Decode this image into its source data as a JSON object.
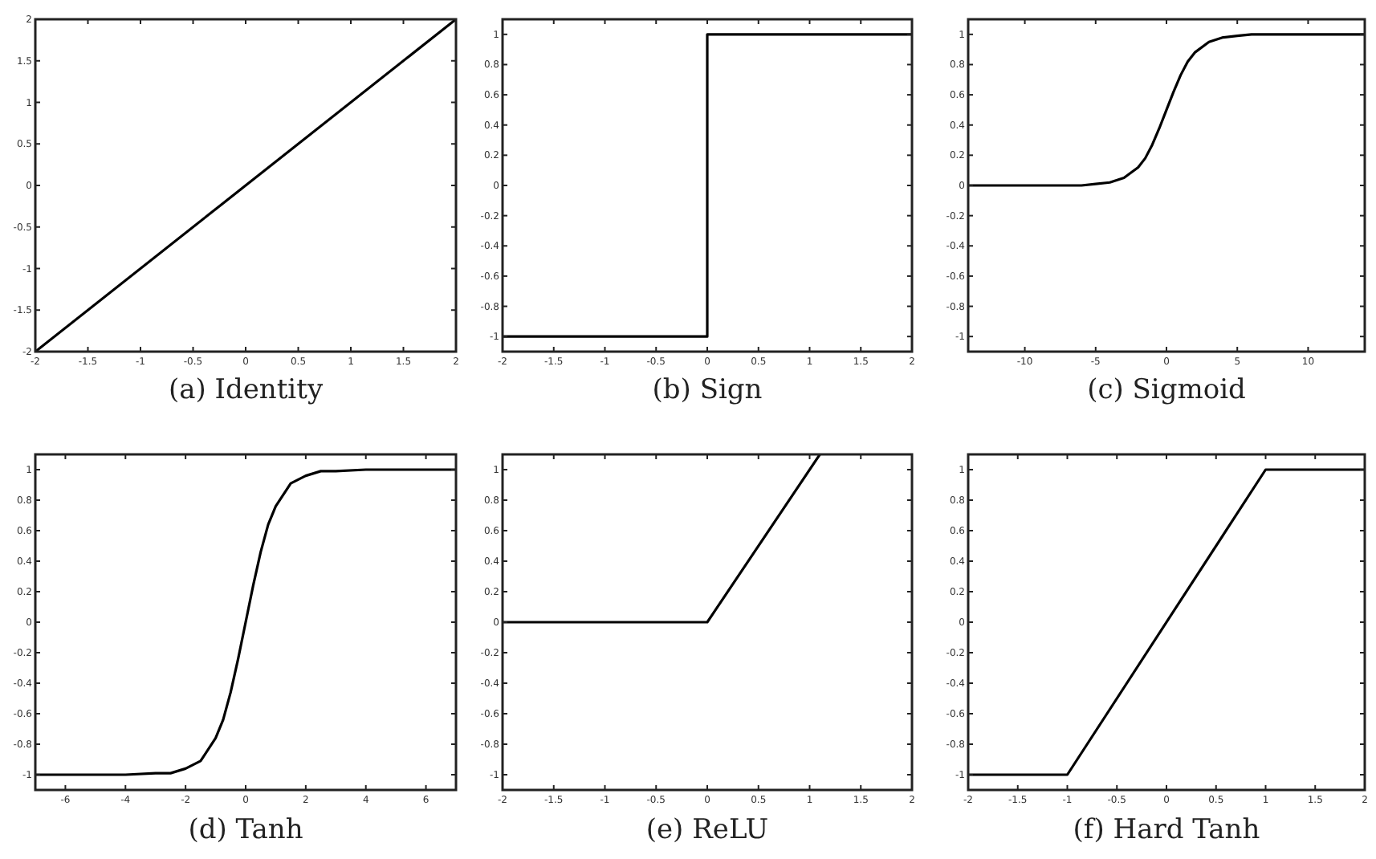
{
  "chart_data": [
    {
      "type": "line",
      "title": "(a) Identity",
      "xlim": [
        -2,
        2
      ],
      "ylim": [
        -2,
        2
      ],
      "xticks": [
        -2,
        -1.5,
        -1,
        -0.5,
        0,
        0.5,
        1,
        1.5,
        2
      ],
      "yticks": [
        -2,
        -1.5,
        -1,
        -0.5,
        0,
        0.5,
        1,
        1.5,
        2
      ],
      "series": [
        {
          "color": "#000000",
          "x": [
            -2,
            2
          ],
          "values": [
            -2,
            2
          ]
        }
      ]
    },
    {
      "type": "line",
      "title": "(b) Sign",
      "xlim": [
        -2,
        2
      ],
      "ylim": [
        -1.1,
        1.1
      ],
      "xticks": [
        -2,
        -1.5,
        -1,
        -0.5,
        0,
        0.5,
        1,
        1.5,
        2
      ],
      "yticks": [
        -1,
        -0.8,
        -0.6,
        -0.4,
        -0.2,
        0,
        0.2,
        0.4,
        0.6,
        0.8,
        1
      ],
      "series": [
        {
          "color": "#000000",
          "x": [
            -2,
            0,
            0,
            2
          ],
          "values": [
            -1,
            -1,
            1,
            1
          ]
        }
      ]
    },
    {
      "type": "line",
      "title": "(c) Sigmoid",
      "xlim": [
        -14,
        14
      ],
      "ylim": [
        -1.1,
        1.1
      ],
      "xticks": [
        -10,
        -5,
        0,
        5,
        10
      ],
      "yticks": [
        -1,
        -0.8,
        -0.6,
        -0.4,
        -0.2,
        0,
        0.2,
        0.4,
        0.6,
        0.8,
        1
      ],
      "series": [
        {
          "color": "#000000",
          "x": [
            -14,
            -10,
            -8,
            -6,
            -5,
            -4,
            -3,
            -2,
            -1.5,
            -1,
            -0.5,
            0,
            0.5,
            1,
            1.5,
            2,
            3,
            4,
            5,
            6,
            8,
            10,
            14
          ],
          "values": [
            0,
            0,
            0,
            0,
            0.01,
            0.02,
            0.05,
            0.12,
            0.18,
            0.27,
            0.38,
            0.5,
            0.62,
            0.73,
            0.82,
            0.88,
            0.95,
            0.98,
            0.99,
            1,
            1,
            1,
            1
          ]
        }
      ]
    },
    {
      "type": "line",
      "title": "(d) Tanh",
      "xlim": [
        -7,
        7
      ],
      "ylim": [
        -1.1,
        1.1
      ],
      "xticks": [
        -6,
        -4,
        -2,
        0,
        2,
        4,
        6
      ],
      "yticks": [
        -1,
        -0.8,
        -0.6,
        -0.4,
        -0.2,
        0,
        0.2,
        0.4,
        0.6,
        0.8,
        1
      ],
      "series": [
        {
          "color": "#000000",
          "x": [
            -7,
            -5,
            -4,
            -3,
            -2.5,
            -2,
            -1.5,
            -1,
            -0.75,
            -0.5,
            -0.25,
            0,
            0.25,
            0.5,
            0.75,
            1,
            1.5,
            2,
            2.5,
            3,
            4,
            5,
            7
          ],
          "values": [
            -1,
            -1,
            -1,
            -0.99,
            -0.99,
            -0.96,
            -0.91,
            -0.76,
            -0.64,
            -0.46,
            -0.24,
            0,
            0.24,
            0.46,
            0.64,
            0.76,
            0.91,
            0.96,
            0.99,
            0.99,
            1,
            1,
            1
          ]
        }
      ]
    },
    {
      "type": "line",
      "title": "(e) ReLU",
      "xlim": [
        -2,
        2
      ],
      "ylim": [
        -1.1,
        1.1
      ],
      "xticks": [
        -2,
        -1.5,
        -1,
        -0.5,
        0,
        0.5,
        1,
        1.5,
        2
      ],
      "yticks": [
        -1,
        -0.8,
        -0.6,
        -0.4,
        -0.2,
        0,
        0.2,
        0.4,
        0.6,
        0.8,
        1
      ],
      "series": [
        {
          "color": "#000000",
          "x": [
            -2,
            0,
            1.1
          ],
          "values": [
            0,
            0,
            1.1
          ]
        }
      ]
    },
    {
      "type": "line",
      "title": "(f) Hard Tanh",
      "xlim": [
        -2,
        2
      ],
      "ylim": [
        -1.1,
        1.1
      ],
      "xticks": [
        -2,
        -1.5,
        -1,
        -0.5,
        0,
        0.5,
        1,
        1.5,
        2
      ],
      "yticks": [
        -1,
        -0.8,
        -0.6,
        -0.4,
        -0.2,
        0,
        0.2,
        0.4,
        0.6,
        0.8,
        1
      ],
      "series": [
        {
          "color": "#000000",
          "x": [
            -2,
            -1,
            1,
            2
          ],
          "values": [
            -1,
            -1,
            1,
            1
          ]
        }
      ]
    }
  ]
}
